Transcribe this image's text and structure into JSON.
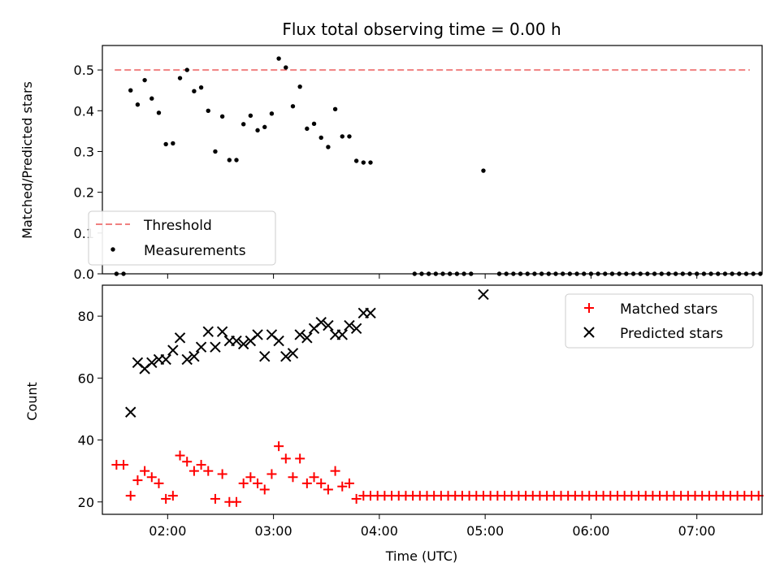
{
  "title": "Flux total observing time = 0.00 h",
  "chart_data": [
    {
      "type": "scatter",
      "ylabel": "Matched/Predicted stars",
      "ylim": [
        0,
        0.56
      ],
      "yticks": [
        0.0,
        0.1,
        0.2,
        0.3,
        0.4,
        0.5
      ],
      "ytick_labels": [
        "0.0",
        "0.1",
        "0.2",
        "0.3",
        "0.4",
        "0.5"
      ],
      "xlim": [
        "01:23",
        "07:37"
      ],
      "legend_position": "lower-left",
      "threshold": {
        "name": "Threshold",
        "value": 0.5,
        "x_range": [
          "01:30",
          "07:30"
        ],
        "color": "#f08080"
      },
      "measurements": {
        "name": "Measurements",
        "color": "#000000",
        "points": [
          [
            "01:31",
            0.0
          ],
          [
            "01:35",
            0.0
          ],
          [
            "01:39",
            0.45
          ],
          [
            "01:43",
            0.415
          ],
          [
            "01:47",
            0.475
          ],
          [
            "01:51",
            0.43
          ],
          [
            "01:55",
            0.395
          ],
          [
            "01:59",
            0.318
          ],
          [
            "02:03",
            0.32
          ],
          [
            "02:07",
            0.48
          ],
          [
            "02:11",
            0.5
          ],
          [
            "02:15",
            0.448
          ],
          [
            "02:19",
            0.457
          ],
          [
            "02:23",
            0.4
          ],
          [
            "02:27",
            0.3
          ],
          [
            "02:31",
            0.386
          ],
          [
            "02:35",
            0.279
          ],
          [
            "02:39",
            0.279
          ],
          [
            "02:43",
            0.367
          ],
          [
            "02:47",
            0.388
          ],
          [
            "02:51",
            0.352
          ],
          [
            "02:55",
            0.36
          ],
          [
            "02:59",
            0.393
          ],
          [
            "03:03",
            0.528
          ],
          [
            "03:07",
            0.506
          ],
          [
            "03:11",
            0.411
          ],
          [
            "03:15",
            0.459
          ],
          [
            "03:19",
            0.356
          ],
          [
            "03:23",
            0.368
          ],
          [
            "03:27",
            0.334
          ],
          [
            "03:31",
            0.311
          ],
          [
            "03:35",
            0.404
          ],
          [
            "03:39",
            0.337
          ],
          [
            "03:43",
            0.337
          ],
          [
            "03:47",
            0.277
          ],
          [
            "03:51",
            0.273
          ],
          [
            "03:55",
            0.273
          ],
          [
            "04:59",
            0.253
          ]
        ],
        "zero_run": {
          "start": "04:20",
          "end": "07:40",
          "step_minutes": 4,
          "value": 0.0,
          "skip_from": "04:55",
          "skip_to": "05:05"
        }
      }
    },
    {
      "type": "scatter",
      "xlabel": "Time (UTC)",
      "ylabel": "Count",
      "ylim": [
        16,
        90
      ],
      "yticks": [
        20,
        40,
        60,
        80
      ],
      "ytick_labels": [
        "20",
        "40",
        "60",
        "80"
      ],
      "xlim": [
        "01:23",
        "07:37"
      ],
      "xticks": [
        "02:00",
        "03:00",
        "04:00",
        "05:00",
        "06:00",
        "07:00"
      ],
      "xtick_labels": [
        "02:00",
        "03:00",
        "04:00",
        "05:00",
        "06:00",
        "07:00"
      ],
      "legend_position": "upper-right",
      "matched": {
        "name": "Matched stars",
        "color": "#ff0000",
        "points": [
          [
            "01:31",
            32
          ],
          [
            "01:35",
            32
          ],
          [
            "01:39",
            22
          ],
          [
            "01:43",
            27
          ],
          [
            "01:47",
            30
          ],
          [
            "01:51",
            28
          ],
          [
            "01:55",
            26
          ],
          [
            "01:59",
            21
          ],
          [
            "02:03",
            22
          ],
          [
            "02:07",
            35
          ],
          [
            "02:11",
            33
          ],
          [
            "02:15",
            30
          ],
          [
            "02:19",
            32
          ],
          [
            "02:23",
            30
          ],
          [
            "02:27",
            21
          ],
          [
            "02:31",
            29
          ],
          [
            "02:35",
            20
          ],
          [
            "02:39",
            20
          ],
          [
            "02:43",
            26
          ],
          [
            "02:47",
            28
          ],
          [
            "02:51",
            26
          ],
          [
            "02:55",
            24
          ],
          [
            "02:59",
            29
          ],
          [
            "03:03",
            38
          ],
          [
            "03:07",
            34
          ],
          [
            "03:11",
            28
          ],
          [
            "03:15",
            34
          ],
          [
            "03:19",
            26
          ],
          [
            "03:23",
            28
          ],
          [
            "03:27",
            26
          ],
          [
            "03:31",
            24
          ],
          [
            "03:35",
            30
          ],
          [
            "03:39",
            25
          ],
          [
            "03:43",
            26
          ],
          [
            "03:47",
            21
          ]
        ],
        "constant_run": {
          "start": "03:51",
          "end": "07:51",
          "step_minutes": 4,
          "value": 22
        }
      },
      "predicted": {
        "name": "Predicted stars",
        "color": "#000000",
        "points": [
          [
            "01:39",
            49
          ],
          [
            "01:43",
            65
          ],
          [
            "01:47",
            63
          ],
          [
            "01:51",
            65
          ],
          [
            "01:55",
            66
          ],
          [
            "01:59",
            66
          ],
          [
            "02:03",
            69
          ],
          [
            "02:07",
            73
          ],
          [
            "02:11",
            66
          ],
          [
            "02:15",
            67
          ],
          [
            "02:19",
            70
          ],
          [
            "02:23",
            75
          ],
          [
            "02:27",
            70
          ],
          [
            "02:31",
            75
          ],
          [
            "02:35",
            72
          ],
          [
            "02:39",
            72
          ],
          [
            "02:43",
            71
          ],
          [
            "02:47",
            72
          ],
          [
            "02:51",
            74
          ],
          [
            "02:55",
            67
          ],
          [
            "02:59",
            74
          ],
          [
            "03:03",
            72
          ],
          [
            "03:07",
            67
          ],
          [
            "03:11",
            68
          ],
          [
            "03:15",
            74
          ],
          [
            "03:19",
            73
          ],
          [
            "03:23",
            76
          ],
          [
            "03:27",
            78
          ],
          [
            "03:31",
            77
          ],
          [
            "03:35",
            74
          ],
          [
            "03:39",
            74
          ],
          [
            "03:43",
            77
          ],
          [
            "03:47",
            76
          ],
          [
            "03:51",
            81
          ],
          [
            "03:55",
            81
          ],
          [
            "04:59",
            87
          ]
        ]
      }
    }
  ]
}
